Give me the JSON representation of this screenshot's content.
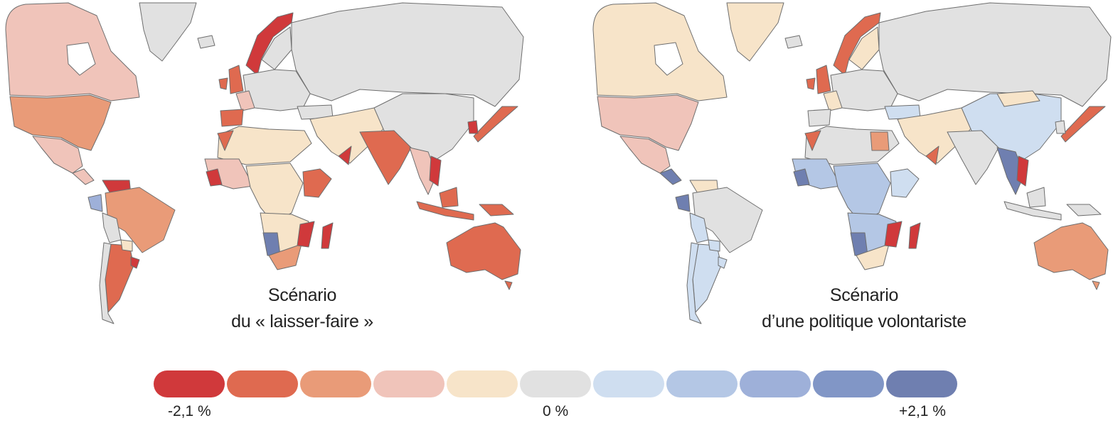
{
  "maps": [
    {
      "caption_line1": "Scénario",
      "caption_line2": "du « laisser-faire »"
    },
    {
      "caption_line1": "Scénario",
      "caption_line2": "d’une politique volontariste"
    }
  ],
  "legend": {
    "colors": [
      "#d0393b",
      "#df6a50",
      "#e99b78",
      "#f0c4ba",
      "#f7e4c9",
      "#e1e1e1",
      "#cfdef0",
      "#b4c7e5",
      "#9eb0d9",
      "#8196c6",
      "#6f7fb0"
    ],
    "label_min": "-2,1 %",
    "label_mid": "0 %",
    "label_max": "+2,1 %"
  },
  "colors": {
    "neutral": "#e1e1e1",
    "border": "#6e6e6e"
  }
}
